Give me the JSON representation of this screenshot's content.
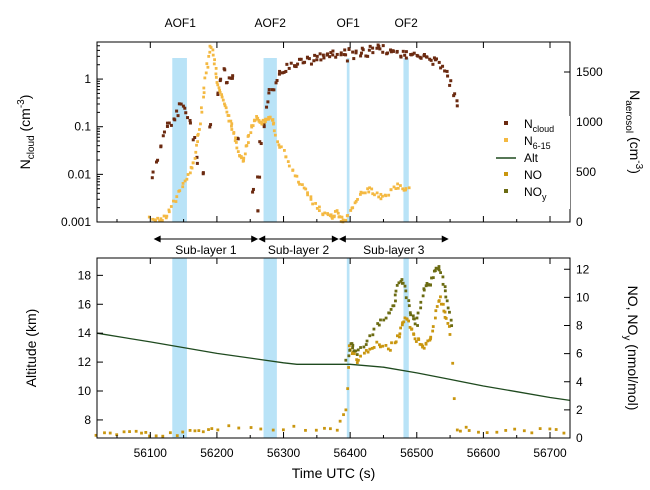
{
  "chart_data": [
    {
      "type": "scatter",
      "panel": "top",
      "xlim": [
        56020,
        56730
      ],
      "ylabel_left": "N_cloud (cm^-3)",
      "ylabel_right": "N_aerosol (cm^-3)",
      "yscale_left": "log",
      "ylim_left": [
        0.001,
        6
      ],
      "ylim_right": [
        0,
        1800
      ],
      "yticks_left": [
        "0.001",
        "0.01",
        "0.1",
        "1"
      ],
      "yticks_right": [
        "0",
        "500",
        "1000",
        "1500"
      ],
      "grid": false,
      "legend_placement": "right",
      "legend": [
        {
          "label": "N",
          "sub": "cloud",
          "marker": "square",
          "color": "#6b2a10"
        },
        {
          "label": "N",
          "sub": "6-15",
          "marker": "square",
          "color": "#f4b942"
        },
        {
          "label": "Alt",
          "sub": "",
          "marker": "line",
          "color": "#1f4a1f"
        },
        {
          "label": "NO",
          "sub": "",
          "marker": "square",
          "color": "#c9960f"
        },
        {
          "label": "NO",
          "sub": "y",
          "marker": "square",
          "color": "#6b6b12"
        }
      ],
      "events": [
        {
          "name": "AOF1",
          "x": 56145,
          "x0": 56133,
          "x1": 56155
        },
        {
          "name": "AOF2",
          "x": 56280,
          "x0": 56270,
          "x1": 56290
        },
        {
          "name": "OF1",
          "x": 56397,
          "x0": 56395,
          "x1": 56399
        },
        {
          "name": "OF2",
          "x": 56484,
          "x0": 56480,
          "x1": 56488
        }
      ],
      "sublayers": [
        {
          "label": "Sub-layer 1",
          "x0": 56105,
          "x1": 56262
        },
        {
          "label": "Sub-layer 2",
          "x0": 56262,
          "x1": 56383
        },
        {
          "label": "Sub-layer 3",
          "x0": 56383,
          "x1": 56548
        }
      ],
      "series": [
        {
          "name": "N_cloud",
          "axis": "left",
          "x": [
            56105,
            56110,
            56115,
            56120,
            56125,
            56130,
            56135,
            56140,
            56145,
            56150,
            56155,
            56160,
            56165,
            56170,
            56180,
            56190,
            56200,
            56205,
            56210,
            56215,
            56220,
            56225,
            56230,
            56255,
            56260,
            56263,
            56266,
            56270,
            56275,
            56280,
            56285,
            56290,
            56295,
            56300,
            56305,
            56310,
            56315,
            56320,
            56325,
            56330,
            56335,
            56340,
            56345,
            56350,
            56355,
            56360,
            56365,
            56370,
            56375,
            56380,
            56385,
            56390,
            56395,
            56400,
            56405,
            56410,
            56415,
            56420,
            56425,
            56430,
            56435,
            56440,
            56445,
            56450,
            56455,
            56460,
            56465,
            56470,
            56475,
            56480,
            56485,
            56490,
            56495,
            56500,
            56505,
            56510,
            56515,
            56520,
            56525,
            56530,
            56535,
            56540,
            56545,
            56550,
            56555,
            56560
          ],
          "y": [
            0.01,
            0.02,
            0.04,
            0.07,
            0.1,
            0.12,
            0.15,
            0.2,
            0.28,
            0.25,
            0.18,
            0.12,
            0.05,
            0.02,
            0.01,
            0.1,
            0.5,
            1.0,
            1.5,
            0.8,
            1.2,
            1.0,
            0.05,
            0.005,
            0.002,
            0.008,
            0.04,
            0.1,
            0.3,
            0.6,
            0.7,
            1.0,
            1.3,
            1.5,
            1.7,
            1.8,
            2.2,
            2.0,
            2.5,
            2.3,
            2.7,
            2.5,
            2.8,
            2.6,
            3.0,
            2.8,
            3.2,
            3.0,
            3.5,
            3.2,
            3.8,
            3.4,
            2.8,
            3.6,
            3.2,
            3.8,
            3.4,
            4.0,
            3.6,
            4.2,
            3.8,
            4.4,
            4.0,
            4.3,
            3.9,
            4.2,
            3.8,
            4.0,
            3.5,
            3.8,
            3.2,
            3.6,
            3.0,
            3.4,
            2.8,
            3.0,
            2.6,
            2.8,
            2.4,
            2.2,
            2.0,
            1.6,
            1.2,
            0.8,
            0.5,
            0.3
          ]
        },
        {
          "name": "N_6-15",
          "axis": "right",
          "x": [
            56100,
            56110,
            56120,
            56130,
            56140,
            56150,
            56160,
            56165,
            56170,
            56175,
            56180,
            56185,
            56190,
            56195,
            56200,
            56205,
            56210,
            56215,
            56220,
            56225,
            56230,
            56235,
            56240,
            56245,
            56250,
            56255,
            56260,
            56265,
            56270,
            56275,
            56280,
            56285,
            56290,
            56300,
            56310,
            56320,
            56330,
            56340,
            56350,
            56360,
            56370,
            56375,
            56380,
            56385,
            56390,
            56400,
            56410,
            56420,
            56430,
            56440,
            56450,
            56460,
            56470,
            56480,
            56490
          ],
          "y": [
            60,
            20,
            40,
            120,
            260,
            400,
            500,
            600,
            800,
            1000,
            1300,
            1550,
            1780,
            1620,
            1450,
            1320,
            1200,
            1120,
            1000,
            900,
            780,
            650,
            620,
            780,
            900,
            1000,
            1050,
            980,
            1010,
            1040,
            1060,
            1000,
            820,
            700,
            560,
            440,
            330,
            240,
            150,
            80,
            50,
            60,
            90,
            40,
            20,
            100,
            230,
            300,
            320,
            270,
            240,
            300,
            360,
            340,
            330
          ]
        }
      ]
    },
    {
      "type": "scatter",
      "panel": "bottom",
      "xlabel": "Time UTC (s)",
      "xlim": [
        56020,
        56730
      ],
      "xticks": [
        "56100",
        "56200",
        "56300",
        "56400",
        "56500",
        "56600",
        "56700"
      ],
      "ylabel_left": "Altitude (km)",
      "ylabel_right": "NO, NO_y (nmol/mol)",
      "ylim_left": [
        6.75,
        19.2
      ],
      "ylim_right": [
        0,
        12.8
      ],
      "yticks_left": [
        "8",
        "10",
        "12",
        "14",
        "16",
        "18"
      ],
      "yticks_right": [
        "0",
        "2",
        "4",
        "6",
        "8",
        "10",
        "12"
      ],
      "grid": false,
      "series": [
        {
          "name": "Alt",
          "axis": "left",
          "x": [
            56020,
            56100,
            56200,
            56300,
            56320,
            56400,
            56450,
            56500,
            56550,
            56600,
            56650,
            56700,
            56730
          ],
          "y": [
            14.0,
            13.4,
            12.6,
            11.95,
            11.85,
            11.85,
            11.65,
            11.25,
            10.8,
            10.35,
            9.95,
            9.55,
            9.35
          ]
        },
        {
          "name": "NO",
          "axis": "right",
          "x": [
            56020,
            56050,
            56080,
            56100,
            56130,
            56160,
            56180,
            56200,
            56250,
            56300,
            56350,
            56380,
            56395,
            56400,
            56405,
            56410,
            56420,
            56430,
            56440,
            56450,
            56460,
            56470,
            56475,
            56480,
            56485,
            56490,
            56495,
            56500,
            56505,
            56510,
            56515,
            56520,
            56525,
            56530,
            56535,
            56540,
            56545,
            56550,
            56560,
            56580,
            56620,
            56660,
            56700,
            56730
          ],
          "y": [
            0.3,
            0.3,
            0.3,
            0.3,
            0.3,
            0.4,
            0.6,
            0.7,
            0.8,
            0.7,
            0.6,
            0.6,
            2.0,
            6.5,
            6.0,
            5.5,
            6.0,
            6.2,
            6.8,
            6.5,
            6.4,
            7.0,
            7.5,
            8.2,
            8.6,
            8.0,
            7.5,
            7.0,
            6.8,
            6.5,
            6.6,
            7.0,
            8.0,
            9.5,
            10.0,
            9.0,
            8.5,
            7.5,
            0.6,
            0.6,
            0.5,
            0.5,
            0.5,
            0.4
          ]
        },
        {
          "name": "NO_y",
          "axis": "right",
          "x": [
            56395,
            56400,
            56405,
            56410,
            56420,
            56430,
            56440,
            56450,
            56460,
            56465,
            56470,
            56475,
            56480,
            56485,
            56490,
            56495,
            56500,
            56505,
            56510,
            56515,
            56520,
            56525,
            56530,
            56535,
            56540,
            56545,
            56550,
            56555
          ],
          "y": [
            5.5,
            6.8,
            6.4,
            6.0,
            6.5,
            7.2,
            8.0,
            8.5,
            9.0,
            9.5,
            10.5,
            11.2,
            11.0,
            10.0,
            9.0,
            8.5,
            8.0,
            9.2,
            10.5,
            11.0,
            10.8,
            11.5,
            12.2,
            12.0,
            11.0,
            10.0,
            9.0,
            7.5
          ]
        }
      ]
    }
  ]
}
